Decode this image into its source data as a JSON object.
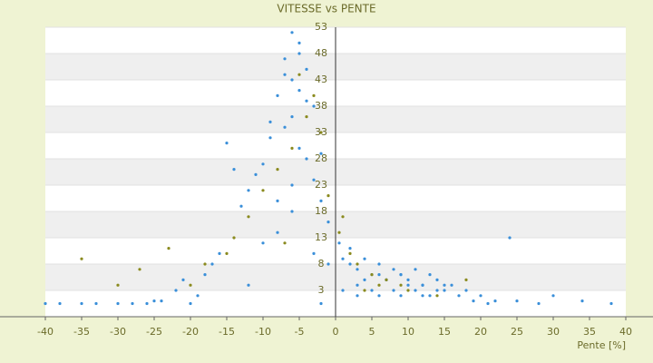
{
  "chart_data": {
    "type": "scatter",
    "title": "VITESSE vs PENTE",
    "x_label": "Pente [%]",
    "xlim": [
      -40,
      40
    ],
    "xticks": [
      -40,
      -35,
      -30,
      -25,
      -20,
      -15,
      -10,
      -5,
      0,
      5,
      10,
      15,
      20,
      25,
      30,
      35,
      40
    ],
    "ylim": [
      -2,
      53
    ],
    "yticks": [
      3,
      8,
      13,
      18,
      23,
      28,
      33,
      38,
      43,
      48,
      53
    ],
    "grid": true,
    "series": [
      {
        "color": "#3a8fd9",
        "x": [
          -6,
          -5,
          -7,
          -4,
          -6,
          -5,
          -8,
          -3,
          -6,
          -7,
          -9,
          -5,
          -4,
          -10,
          -11,
          -12,
          -8,
          -6,
          -3,
          -2,
          -1,
          -13,
          -15,
          -14,
          -9,
          -7,
          -5,
          -4,
          -2,
          -6,
          -8,
          -10,
          -3,
          -1,
          0.5,
          1,
          2,
          3,
          4,
          5,
          6,
          7,
          8,
          9,
          10,
          11,
          12,
          13,
          14,
          15,
          2,
          3,
          5,
          7,
          9,
          11,
          13,
          16,
          18,
          20,
          22,
          25,
          28,
          1,
          4,
          6,
          8,
          10,
          12,
          14,
          17,
          19,
          21,
          24,
          -20,
          -18,
          -16,
          -22,
          -25,
          -28,
          -30,
          -35,
          -38,
          -40,
          -33,
          -26,
          -19,
          -12,
          -17,
          -21,
          -24,
          3,
          6,
          9,
          12,
          15,
          30,
          34,
          38,
          -2
        ],
        "values": [
          52,
          50,
          47,
          45,
          43,
          41,
          40,
          38,
          36,
          34,
          32,
          30,
          28,
          27,
          25,
          22,
          20,
          18,
          24,
          20,
          16,
          19,
          31,
          26,
          35,
          44,
          48,
          39,
          29,
          23,
          14,
          12,
          10,
          8,
          12,
          9,
          8,
          7,
          9,
          6,
          8,
          5,
          7,
          6,
          5,
          7,
          4,
          6,
          5,
          4,
          11,
          4,
          3,
          5,
          2,
          3,
          2,
          4,
          3,
          2,
          1,
          1,
          0.5,
          3,
          5,
          2,
          3,
          4,
          2,
          3,
          2,
          1,
          0.5,
          13,
          0.5,
          6,
          10,
          3,
          1,
          0.5,
          0.5,
          0.5,
          0.5,
          0.5,
          0.5,
          0.5,
          2,
          4,
          8,
          5,
          1,
          2,
          6,
          6,
          4,
          3,
          2,
          1,
          0.5,
          0.5
        ]
      },
      {
        "color": "#8a8a1e",
        "x": [
          -3,
          -4,
          -2,
          -6,
          -8,
          -10,
          -12,
          -5,
          -1,
          -7,
          0.5,
          1,
          2,
          3,
          5,
          7,
          9,
          -15,
          -18,
          -23,
          -27,
          -30,
          -35,
          4,
          6,
          10,
          14,
          18,
          -14,
          -20
        ],
        "values": [
          40,
          36,
          33,
          30,
          26,
          22,
          17,
          44,
          21,
          12,
          14,
          17,
          10,
          8,
          6,
          5,
          4,
          10,
          8,
          11,
          7,
          4,
          9,
          3,
          4,
          3,
          2,
          5,
          13,
          4
        ]
      }
    ]
  }
}
